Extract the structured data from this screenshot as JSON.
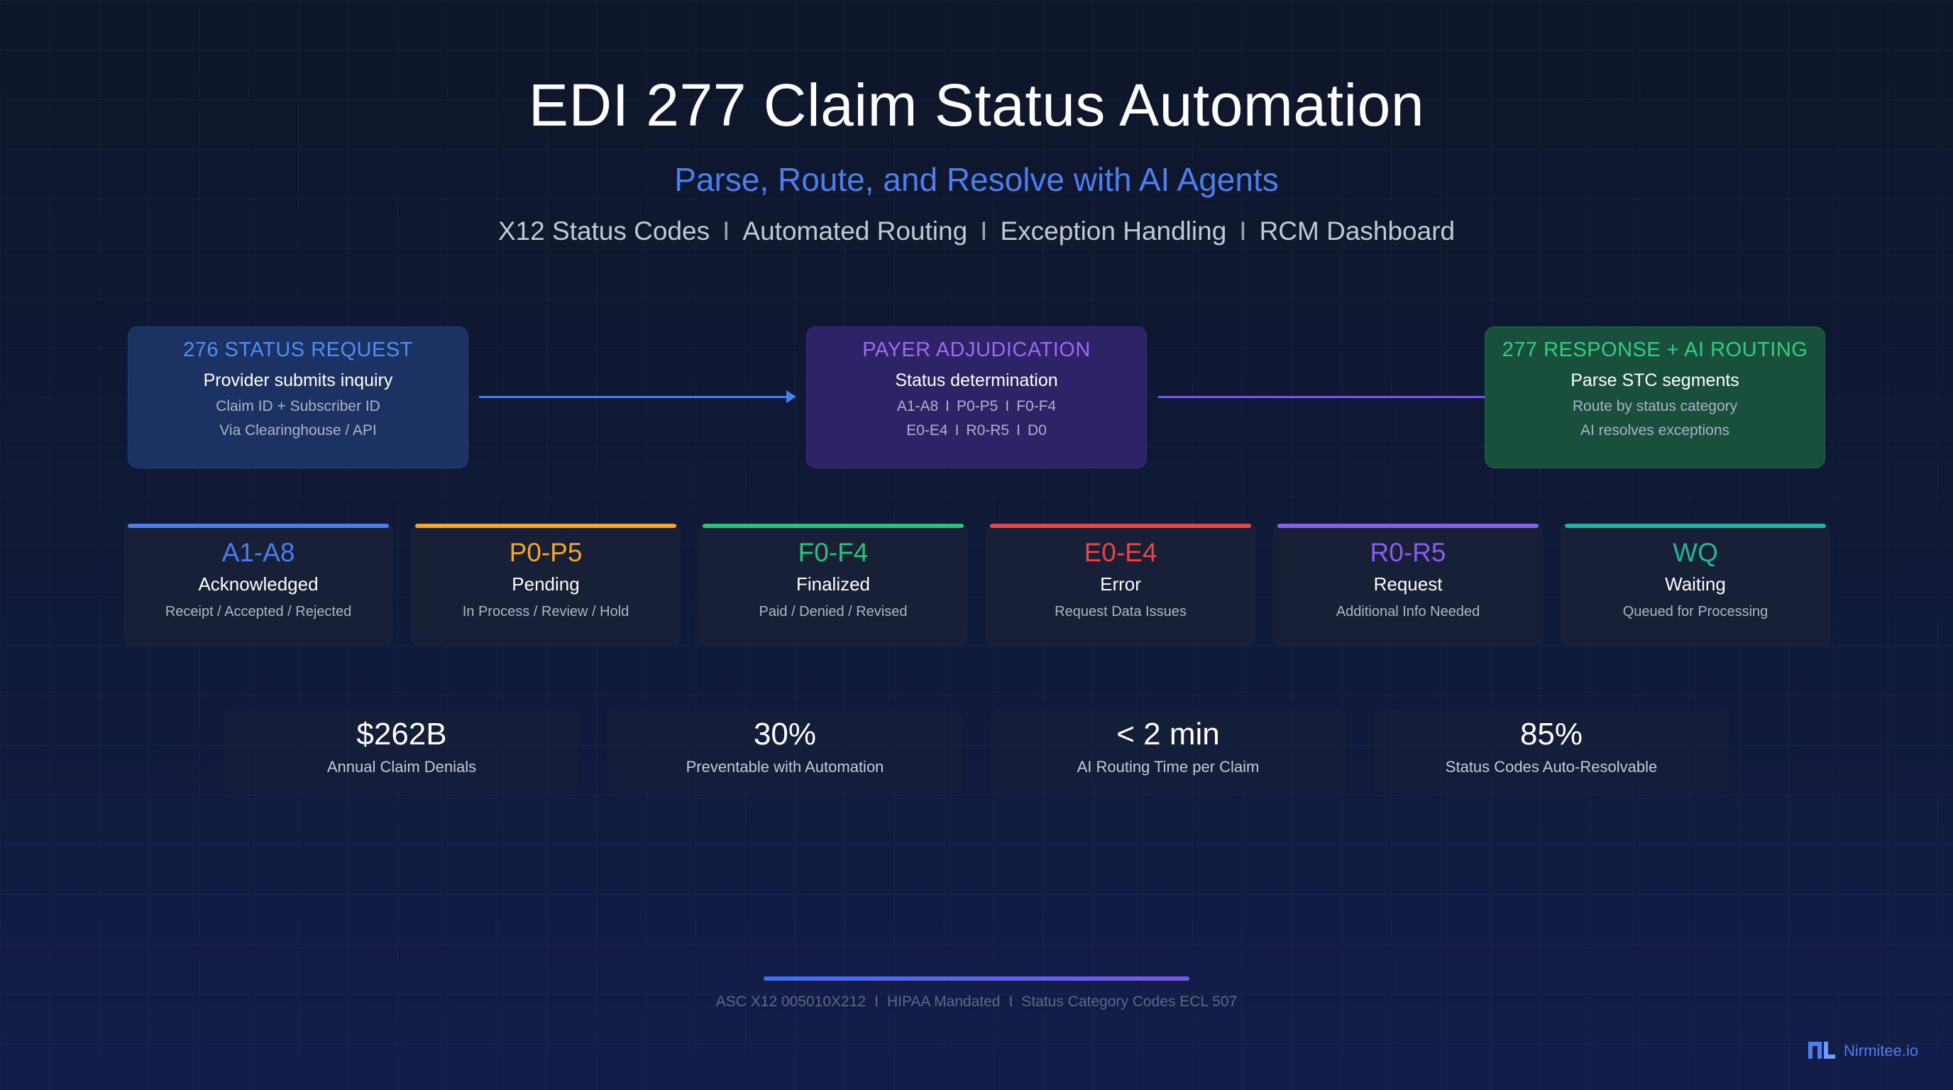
{
  "header": {
    "title": "EDI 277 Claim Status Automation",
    "subtitle": "Parse, Route, and Resolve with AI Agents",
    "tagline": [
      "X12 Status Codes",
      "Automated Routing",
      "Exception Handling",
      "RCM Dashboard"
    ]
  },
  "flow": {
    "request": {
      "title": "276 STATUS REQUEST",
      "main": "Provider submits inquiry",
      "line1": "Claim ID + Subscriber ID",
      "line2": "Via Clearinghouse / API"
    },
    "adjudication": {
      "title": "PAYER ADJUDICATION",
      "main": "Status determination",
      "line1": [
        "A1-A8",
        "P0-P5",
        "F0-F4"
      ],
      "line2": [
        "E0-E4",
        "R0-R5",
        "D0"
      ]
    },
    "response": {
      "title": "277 RESPONSE + AI ROUTING",
      "main": "Parse STC segments",
      "line1": "Route by status category",
      "line2": "AI resolves exceptions"
    }
  },
  "codes": [
    {
      "code": "A1-A8",
      "name": "Acknowledged",
      "desc": "Receipt / Accepted / Rejected",
      "color": "#4a7ef0"
    },
    {
      "code": "P0-P5",
      "name": "Pending",
      "desc": "In Process / Review / Hold",
      "color": "#f5a623"
    },
    {
      "code": "F0-F4",
      "name": "Finalized",
      "desc": "Paid / Denied / Revised",
      "color": "#27c47a"
    },
    {
      "code": "E0-E4",
      "name": "Error",
      "desc": "Request Data Issues",
      "color": "#e84545"
    },
    {
      "code": "R0-R5",
      "name": "Request",
      "desc": "Additional Info Needed",
      "color": "#8a5cf0"
    },
    {
      "code": "WQ",
      "name": "Waiting",
      "desc": "Queued for Processing",
      "color": "#21b59a"
    }
  ],
  "stats": [
    {
      "value": "$262B",
      "label": "Annual Claim Denials"
    },
    {
      "value": "30%",
      "label": "Preventable with Automation"
    },
    {
      "value": "< 2 min",
      "label": "AI Routing Time per Claim"
    },
    {
      "value": "85%",
      "label": "Status Codes Auto-Resolvable"
    }
  ],
  "footer": {
    "items": [
      "ASC X12 005010X212",
      "HIPAA Mandated",
      "Status Category Codes ECL 507"
    ],
    "separator": "I"
  },
  "logo": {
    "text": "Nirmitee.io",
    "icon": "nirmitee-logo-icon"
  }
}
